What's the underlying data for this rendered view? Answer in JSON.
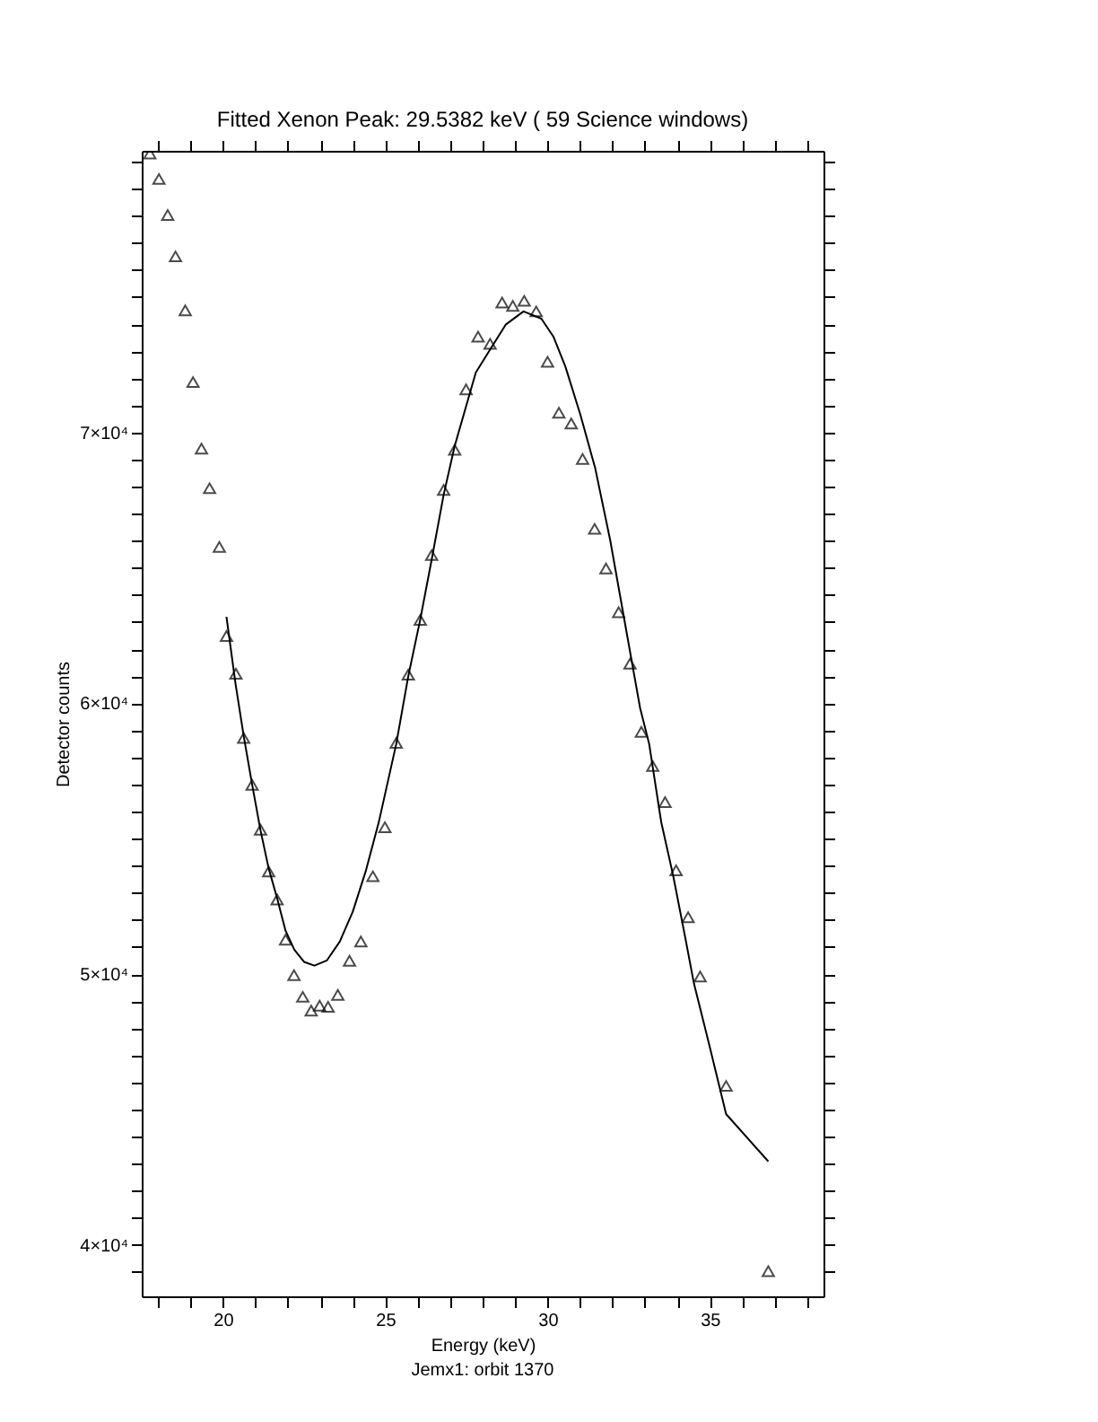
{
  "chart_data": {
    "type": "scatter",
    "title": "Fitted Xenon Peak:       29.5382 keV (      59 Science windows)",
    "xlabel": "Energy (keV)",
    "ylabel": "Detector counts",
    "annotations": [
      "Jemx1: orbit 1370"
    ],
    "xlim": [
      17.5,
      38.5
    ],
    "ylim": [
      38100,
      80400
    ],
    "xticks": [
      {
        "value": 18,
        "label": null
      },
      {
        "value": 19,
        "label": null
      },
      20,
      {
        "value": 21,
        "label": null
      },
      {
        "value": 22,
        "label": null
      },
      {
        "value": 23,
        "label": null
      },
      {
        "value": 24,
        "label": null
      },
      25,
      {
        "value": 26,
        "label": null
      },
      {
        "value": 27,
        "label": null
      },
      {
        "value": 28,
        "label": null
      },
      {
        "value": 29,
        "label": null
      },
      30,
      {
        "value": 31,
        "label": null
      },
      {
        "value": 32,
        "label": null
      },
      {
        "value": 33,
        "label": null
      },
      {
        "value": 34,
        "label": null
      },
      35,
      {
        "value": 36,
        "label": null
      },
      {
        "value": 37,
        "label": null
      },
      {
        "value": 38,
        "label": null
      }
    ],
    "yticks": [
      {
        "value": 39000,
        "label": null
      },
      {
        "value": 40000,
        "label": "4×10⁴"
      },
      {
        "value": 41000,
        "label": null
      },
      {
        "value": 42000,
        "label": null
      },
      {
        "value": 43000,
        "label": null
      },
      {
        "value": 44000,
        "label": null
      },
      {
        "value": 45000,
        "label": null
      },
      {
        "value": 46000,
        "label": null
      },
      {
        "value": 47000,
        "label": null
      },
      {
        "value": 48000,
        "label": null
      },
      {
        "value": 49000,
        "label": null
      },
      {
        "value": 50000,
        "label": "5×10⁴"
      },
      {
        "value": 51000,
        "label": null
      },
      {
        "value": 52000,
        "label": null
      },
      {
        "value": 53000,
        "label": null
      },
      {
        "value": 54000,
        "label": null
      },
      {
        "value": 55000,
        "label": null
      },
      {
        "value": 56000,
        "label": null
      },
      {
        "value": 57000,
        "label": null
      },
      {
        "value": 58000,
        "label": null
      },
      {
        "value": 59000,
        "label": null
      },
      {
        "value": 60000,
        "label": "6×10⁴"
      },
      {
        "value": 61000,
        "label": null
      },
      {
        "value": 62000,
        "label": null
      },
      {
        "value": 63000,
        "label": null
      },
      {
        "value": 64000,
        "label": null
      },
      {
        "value": 65000,
        "label": null
      },
      {
        "value": 66000,
        "label": null
      },
      {
        "value": 67000,
        "label": null
      },
      {
        "value": 68000,
        "label": null
      },
      {
        "value": 69000,
        "label": null
      },
      {
        "value": 70000,
        "label": "7×10⁴"
      },
      {
        "value": 71000,
        "label": null
      },
      {
        "value": 72000,
        "label": null
      },
      {
        "value": 73000,
        "label": null
      },
      {
        "value": 74000,
        "label": null
      },
      {
        "value": 75000,
        "label": null
      },
      {
        "value": 76000,
        "label": null
      },
      {
        "value": 77000,
        "label": null
      },
      {
        "value": 78000,
        "label": null
      },
      {
        "value": 79000,
        "label": null
      },
      {
        "value": 80000,
        "label": null
      }
    ],
    "grid": false,
    "series": [
      {
        "type": "scatter",
        "marker": "triangle",
        "color": "#000000",
        "x": [
          17.75,
          18.03,
          18.3,
          18.54,
          18.84,
          19.08,
          19.34,
          19.59,
          19.89,
          20.11,
          20.4,
          20.64,
          20.9,
          21.16,
          21.41,
          21.67,
          21.93,
          22.19,
          22.46,
          22.72,
          22.98,
          23.24,
          23.54,
          23.9,
          24.25,
          24.62,
          24.99,
          25.34,
          25.71,
          26.08,
          26.43,
          26.8,
          27.14,
          27.49,
          27.86,
          28.23,
          28.6,
          28.93,
          29.28,
          29.65,
          30.0,
          30.35,
          30.73,
          31.08,
          31.45,
          31.8,
          32.19,
          32.54,
          32.89,
          33.24,
          33.62,
          33.96,
          34.33,
          34.7,
          35.5,
          36.8
        ],
        "values": [
          80300,
          79360,
          78030,
          76500,
          74510,
          71860,
          69400,
          67940,
          65770,
          62480,
          61090,
          58720,
          56990,
          55330,
          53790,
          52750,
          51270,
          49960,
          49160,
          48650,
          48830,
          48790,
          49230,
          50490,
          51200,
          53610,
          55420,
          58540,
          61060,
          63080,
          65470,
          67880,
          69360,
          71590,
          73540,
          73270,
          74800,
          74670,
          74860,
          74470,
          72610,
          70730,
          70330,
          69020,
          66440,
          64980,
          63360,
          61460,
          58940,
          57680,
          56350,
          53830,
          52100,
          49910,
          45870,
          39030
        ]
      },
      {
        "type": "line",
        "marker": "none",
        "line_style": "solid",
        "color": "#000000",
        "x": [
          20.11,
          20.39,
          20.64,
          20.9,
          21.16,
          21.41,
          21.67,
          21.93,
          22.2,
          22.5,
          22.82,
          23.2,
          23.6,
          24.0,
          24.4,
          24.8,
          25.34,
          25.71,
          26.08,
          26.43,
          26.8,
          27.14,
          27.5,
          27.79,
          28.25,
          28.71,
          29.26,
          29.81,
          30.18,
          30.55,
          31.01,
          31.47,
          31.93,
          32.39,
          32.85,
          33.13,
          33.5,
          33.87,
          34.23,
          34.51,
          34.97,
          35.5,
          36.8
        ],
        "values": [
          63190,
          60710,
          58800,
          57000,
          55300,
          53900,
          52800,
          51600,
          50900,
          50450,
          50310,
          50500,
          51200,
          52300,
          53800,
          55600,
          58500,
          61000,
          63100,
          65300,
          67700,
          69500,
          71000,
          72210,
          73100,
          73980,
          74470,
          74200,
          73540,
          72430,
          70660,
          68670,
          66020,
          62920,
          59830,
          58500,
          55620,
          53630,
          51420,
          49650,
          47440,
          44830,
          43080
        ]
      }
    ]
  }
}
